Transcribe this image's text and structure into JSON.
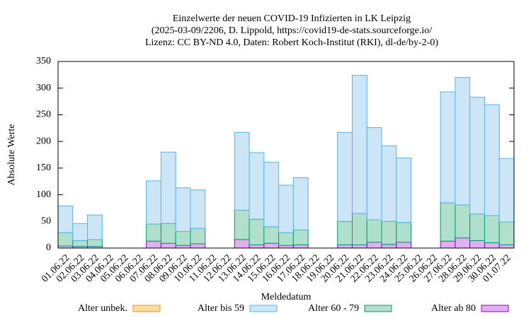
{
  "chart_data": {
    "type": "stacked_bar",
    "title": "Einzelwerte der neuen COVID-19 Infizierten in LK Leipzig",
    "subtitle": [
      "(2025-03-09/2206, D. Lippold, https://covid19-de-stats.sourceforge.io/",
      "Lizenz: CC BY-ND 4.0, Daten: Robert Koch-Institut (RKI), dl-de/by-2-0)"
    ],
    "x_label": "Meldedatum",
    "y_label": "Absolute Werte",
    "categories": [
      "01.06.22",
      "02.06.22",
      "03.06.22",
      "04.06.22",
      "05.06.22",
      "06.06.22",
      "07.06.22",
      "08.06.22",
      "09.06.22",
      "10.06.22",
      "11.06.22",
      "12.06.22",
      "13.06.22",
      "14.06.22",
      "15.06.22",
      "16.06.22",
      "17.06.22",
      "18.06.22",
      "19.06.22",
      "20.06.22",
      "21.06.22",
      "22.06.22",
      "23.06.22",
      "24.06.22",
      "25.06.22",
      "26.06.22",
      "27.06.22",
      "28.06.22",
      "29.06.22",
      "30.06.22",
      "01.07.22"
    ],
    "series": [
      {
        "name": "Alter unbek.",
        "color": "#f8dca0",
        "stroke": "#e69f00",
        "values": [
          0,
          0,
          0,
          0,
          0,
          0,
          0,
          0,
          0,
          0,
          0,
          0,
          0,
          0,
          0,
          0,
          0,
          0,
          0,
          0,
          0,
          0,
          0,
          0,
          0,
          0,
          0,
          0,
          0,
          0,
          0
        ]
      },
      {
        "name": "Alter bis 59",
        "color": "#cce6f8",
        "stroke": "#56b4e9",
        "values": [
          50,
          32,
          46,
          0,
          0,
          0,
          81,
          134,
          82,
          72,
          0,
          0,
          146,
          125,
          121,
          89,
          98,
          0,
          0,
          167,
          259,
          173,
          142,
          121,
          0,
          0,
          208,
          239,
          219,
          208,
          119
        ]
      },
      {
        "name": "Alter 60 - 79",
        "color": "#b0e0cc",
        "stroke": "#009e73",
        "values": [
          25,
          11,
          13,
          0,
          0,
          0,
          32,
          37,
          26,
          29,
          0,
          0,
          55,
          48,
          31,
          24,
          28,
          0,
          0,
          44,
          59,
          42,
          43,
          37,
          0,
          0,
          72,
          62,
          50,
          51,
          43
        ]
      },
      {
        "name": "Alter ab 80",
        "color": "#e0b0f0",
        "stroke": "#9400d3",
        "values": [
          4,
          3,
          3,
          0,
          0,
          0,
          13,
          9,
          5,
          8,
          0,
          0,
          16,
          6,
          9,
          5,
          6,
          0,
          0,
          6,
          6,
          11,
          7,
          11,
          0,
          0,
          13,
          19,
          14,
          10,
          6
        ]
      }
    ],
    "ylim": [
      0,
      350
    ],
    "yticks": [
      0,
      50,
      100,
      150,
      200,
      250,
      300,
      350
    ],
    "grid": false,
    "legend": "bottom"
  }
}
